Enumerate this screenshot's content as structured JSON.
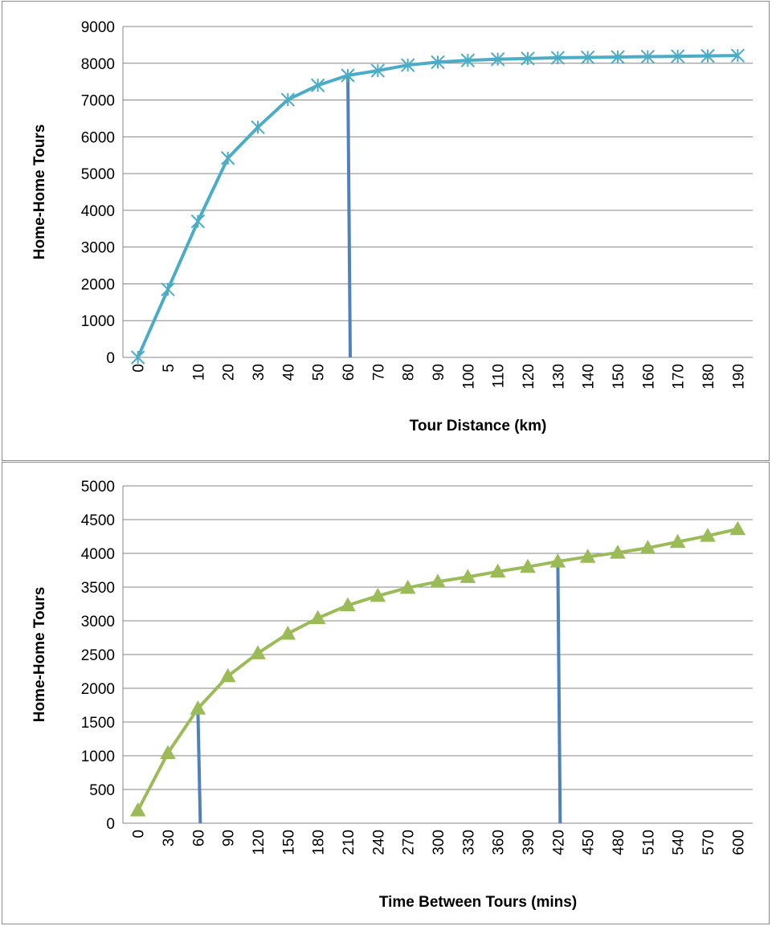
{
  "chart_data": [
    {
      "type": "line",
      "title": "",
      "xlabel": "Tour Distance (km)",
      "ylabel": "Home-Home Tours",
      "ylim": [
        0,
        9000
      ],
      "y_ticks": [
        "0",
        "1000",
        "2000",
        "3000",
        "4000",
        "5000",
        "6000",
        "7000",
        "8000",
        "9000"
      ],
      "categories": [
        "0",
        "5",
        "10",
        "20",
        "30",
        "40",
        "50",
        "60",
        "70",
        "80",
        "90",
        "100",
        "110",
        "120",
        "130",
        "140",
        "150",
        "160",
        "170",
        "180",
        "190"
      ],
      "series": [
        {
          "name": "",
          "color": "#4bacc6",
          "marker": "asterisk",
          "values": [
            0,
            1850,
            3700,
            5420,
            6260,
            7010,
            7400,
            7670,
            7800,
            7950,
            8030,
            8080,
            8110,
            8130,
            8150,
            8160,
            8170,
            8180,
            8190,
            8200,
            8210
          ]
        }
      ],
      "reference_lines": [
        {
          "x": "60",
          "from": 0,
          "to": 7670,
          "color": "#4f81bd"
        }
      ],
      "grid": true,
      "legend": "none"
    },
    {
      "type": "line",
      "title": "",
      "xlabel": "Time Between Tours (mins)",
      "ylabel": "Home-Home Tours",
      "ylim": [
        0,
        5000
      ],
      "y_ticks": [
        "0",
        "500",
        "1000",
        "1500",
        "2000",
        "2500",
        "3000",
        "3500",
        "4000",
        "4500",
        "5000"
      ],
      "categories": [
        "0",
        "30",
        "60",
        "90",
        "120",
        "150",
        "180",
        "210",
        "240",
        "270",
        "300",
        "330",
        "360",
        "390",
        "420",
        "450",
        "480",
        "510",
        "540",
        "570",
        "600"
      ],
      "series": [
        {
          "name": "",
          "color": "#9bbb59",
          "marker": "triangle",
          "values": [
            190,
            1040,
            1700,
            2180,
            2520,
            2810,
            3040,
            3230,
            3370,
            3490,
            3580,
            3650,
            3730,
            3800,
            3880,
            3950,
            4010,
            4080,
            4170,
            4260,
            4360
          ]
        }
      ],
      "reference_lines": [
        {
          "x": "60",
          "from": 0,
          "to": 1700,
          "color": "#4f81bd"
        },
        {
          "x": "420",
          "from": 0,
          "to": 3960,
          "color": "#4f81bd"
        }
      ],
      "grid": true,
      "legend": "none"
    }
  ]
}
